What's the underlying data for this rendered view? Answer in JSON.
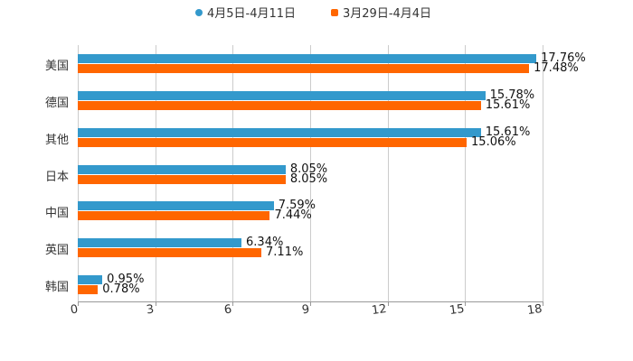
{
  "chart_data": {
    "type": "bar",
    "orientation": "horizontal",
    "title": "",
    "xlabel": "",
    "ylabel": "",
    "xlim": [
      0,
      18
    ],
    "x_ticks": [
      "0",
      "3",
      "6",
      "9",
      "12",
      "15",
      "18"
    ],
    "grid": true,
    "legend_position": "top",
    "categories": [
      "美国",
      "德国",
      "其他",
      "日本",
      "中国",
      "英国",
      "韩国"
    ],
    "series": [
      {
        "name": "4月5日-4月11日",
        "color": "#3399cc",
        "values": [
          17.76,
          15.78,
          15.61,
          8.05,
          7.59,
          6.34,
          0.95
        ],
        "labels": [
          "17.76%",
          "15.78%",
          "15.61%",
          "8.05%",
          "7.59%",
          "6.34%",
          "0.95%"
        ]
      },
      {
        "name": "3月29日-4月4日",
        "color": "#ff6600",
        "values": [
          17.48,
          15.61,
          15.06,
          8.05,
          7.44,
          7.11,
          0.78
        ],
        "labels": [
          "17.48%",
          "15.61%",
          "15.06%",
          "8.05%",
          "7.44%",
          "7.11%",
          "0.78%"
        ]
      }
    ]
  },
  "legend": {
    "s0": "4月5日-4月11日",
    "s1": "3月29日-4月4日"
  },
  "axis": {
    "t0": "0",
    "t1": "3",
    "t2": "6",
    "t3": "9",
    "t4": "12",
    "t5": "15",
    "t6": "18"
  }
}
